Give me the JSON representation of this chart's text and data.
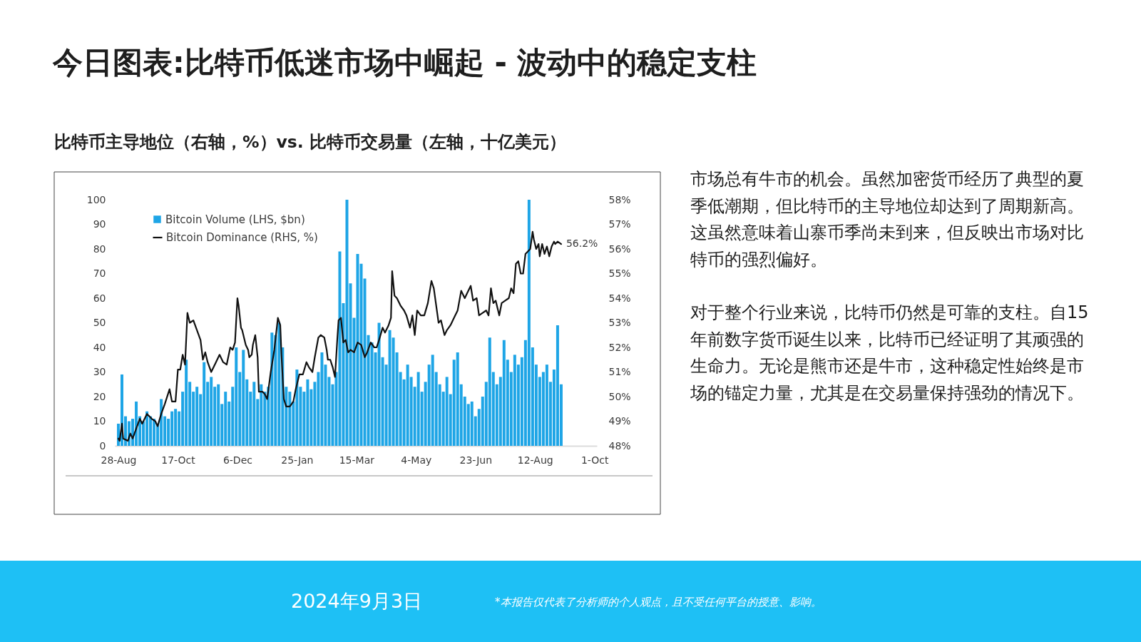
{
  "chart_data": {
    "type": "bar",
    "title": "今日图表:比特币低迷市场中崛起 - 波动中的稳定支柱",
    "subtitle": "比特币主导地位（右轴，%）vs. 比特币交易量（左轴，十亿美元）",
    "annotations": [
      "市场总有牛市的机会。虽然加密货币经历了典型的夏季低潮期，但比特币的主导地位却达到了周期新高。这虽然意味着山寨币季尚未到来，但反映出市场对比特币的强烈偏好。",
      "对于整个行业来说，比特币仍然是可靠的支柱。自15年前数字货币诞生以来，比特币已经证明了其顽强的生命力。无论是熊市还是牛市，这种稳定性始终是市场的锚定力量，尤其是在交易量保持强劲的情况下。",
      "2024年9月3日",
      "*本报告仅代表了分析师的个人观点，且不受任何平台的授意、影响。"
    ],
    "legend": "top left",
    "xlim": [
      "2023-08-25",
      "2024-10-03"
    ],
    "xticks": [
      {
        "value": "2023-08-28",
        "label": "28-Aug"
      },
      {
        "value": "2023-10-17",
        "label": "17-Oct"
      },
      {
        "value": "2023-12-06",
        "label": "6-Dec"
      },
      {
        "value": "2024-01-25",
        "label": "25-Jan"
      },
      {
        "value": "2024-03-15",
        "label": "15-Mar"
      },
      {
        "value": "2024-05-04",
        "label": "4-May"
      },
      {
        "value": "2024-06-23",
        "label": "23-Jun"
      },
      {
        "value": "2024-08-12",
        "label": "12-Aug"
      },
      {
        "value": "2024-10-01",
        "label": "1-Oct"
      }
    ],
    "ylim": [
      0,
      100
    ],
    "yticks": [
      0,
      10,
      20,
      30,
      40,
      50,
      60,
      70,
      80,
      90,
      100
    ],
    "y2lim": [
      48,
      58
    ],
    "y2ticks": [
      {
        "value": 48,
        "label": "48%"
      },
      {
        "value": 49,
        "label": "49%"
      },
      {
        "value": 50,
        "label": "50%"
      },
      {
        "value": 51,
        "label": "51%"
      },
      {
        "value": 52,
        "label": "52%"
      },
      {
        "value": 53,
        "label": "53%"
      },
      {
        "value": 54,
        "label": "54%"
      },
      {
        "value": 55,
        "label": "55%"
      },
      {
        "value": 56,
        "label": "56%"
      },
      {
        "value": 57,
        "label": "57%"
      },
      {
        "value": 58,
        "label": "58%"
      }
    ],
    "x": [
      "2023-08-28",
      "2023-08-31",
      "2023-09-03",
      "2023-09-06",
      "2023-09-09",
      "2023-09-12",
      "2023-09-15",
      "2023-09-18",
      "2023-09-21",
      "2023-09-24",
      "2023-09-27",
      "2023-09-30",
      "2023-10-03",
      "2023-10-06",
      "2023-10-09",
      "2023-10-12",
      "2023-10-15",
      "2023-10-18",
      "2023-10-21",
      "2023-10-24",
      "2023-10-27",
      "2023-10-30",
      "2023-11-02",
      "2023-11-05",
      "2023-11-08",
      "2023-11-11",
      "2023-11-14",
      "2023-11-17",
      "2023-11-20",
      "2023-11-23",
      "2023-11-26",
      "2023-11-29",
      "2023-12-02",
      "2023-12-05",
      "2023-12-08",
      "2023-12-11",
      "2023-12-14",
      "2023-12-17",
      "2023-12-20",
      "2023-12-23",
      "2023-12-26",
      "2023-12-29",
      "2024-01-01",
      "2024-01-04",
      "2024-01-07",
      "2024-01-10",
      "2024-01-13",
      "2024-01-16",
      "2024-01-19",
      "2024-01-22",
      "2024-01-25",
      "2024-01-28",
      "2024-01-31",
      "2024-02-03",
      "2024-02-06",
      "2024-02-09",
      "2024-02-12",
      "2024-02-15",
      "2024-02-18",
      "2024-02-21",
      "2024-02-24",
      "2024-02-27",
      "2024-03-01",
      "2024-03-04",
      "2024-03-07",
      "2024-03-10",
      "2024-03-13",
      "2024-03-16",
      "2024-03-19",
      "2024-03-22",
      "2024-03-25",
      "2024-03-28",
      "2024-03-31",
      "2024-04-03",
      "2024-04-06",
      "2024-04-09",
      "2024-04-12",
      "2024-04-15",
      "2024-04-18",
      "2024-04-21",
      "2024-04-24",
      "2024-04-27",
      "2024-04-30",
      "2024-05-03",
      "2024-05-06",
      "2024-05-09",
      "2024-05-12",
      "2024-05-15",
      "2024-05-18",
      "2024-05-21",
      "2024-05-24",
      "2024-05-27",
      "2024-05-30",
      "2024-06-02",
      "2024-06-05",
      "2024-06-08",
      "2024-06-11",
      "2024-06-14",
      "2024-06-17",
      "2024-06-20",
      "2024-06-23",
      "2024-06-26",
      "2024-06-29",
      "2024-07-02",
      "2024-07-05",
      "2024-07-08",
      "2024-07-11",
      "2024-07-14",
      "2024-07-17",
      "2024-07-20",
      "2024-07-23",
      "2024-07-26",
      "2024-07-29",
      "2024-08-01",
      "2024-08-04",
      "2024-08-07",
      "2024-08-10",
      "2024-08-13",
      "2024-08-16",
      "2024-08-19",
      "2024-08-22",
      "2024-08-25",
      "2024-08-28",
      "2024-08-31",
      "2024-09-03"
    ],
    "series": [
      {
        "name": "Bitcoin Volume (LHS, $bn)",
        "axis": "y",
        "color": "#1ea5e6",
        "values": [
          9,
          29,
          12,
          10,
          11,
          18,
          12,
          10,
          14,
          12,
          11,
          9,
          19,
          12,
          11,
          14,
          15,
          14,
          22,
          35,
          26,
          22,
          24,
          21,
          34,
          26,
          28,
          24,
          25,
          17,
          22,
          18,
          24,
          40,
          30,
          39,
          27,
          22,
          26,
          19,
          25,
          22,
          24,
          46,
          45,
          50,
          40,
          24,
          22,
          18,
          31,
          24,
          22,
          27,
          23,
          26,
          30,
          38,
          33,
          28,
          25,
          30,
          79,
          58,
          100,
          66,
          52,
          78,
          74,
          68,
          45,
          42,
          38,
          50,
          36,
          33,
          47,
          44,
          38,
          30,
          27,
          33,
          28,
          24,
          30,
          22,
          26,
          33,
          37,
          30,
          25,
          22,
          28,
          21,
          35,
          38,
          25,
          20,
          17,
          18,
          12,
          15,
          20,
          26,
          44,
          30,
          25,
          28,
          43,
          35,
          30,
          37,
          33,
          36,
          43,
          100,
          40,
          33,
          28,
          30,
          33,
          26,
          31,
          49,
          25
        ]
      },
      {
        "name": "Bitcoin Dominance (RHS, %)",
        "type": "line",
        "axis": "y2",
        "color": "#111111",
        "x": [
          "2023-08-28",
          "2023-08-29",
          "2023-08-31",
          "2023-09-01",
          "2023-09-05",
          "2023-09-07",
          "2023-09-09",
          "2023-09-12",
          "2023-09-15",
          "2023-09-17",
          "2023-09-21",
          "2023-09-25",
          "2023-09-28",
          "2023-09-30",
          "2023-10-03",
          "2023-10-06",
          "2023-10-10",
          "2023-10-12",
          "2023-10-15",
          "2023-10-17",
          "2023-10-19",
          "2023-10-21",
          "2023-10-23",
          "2023-10-25",
          "2023-10-27",
          "2023-10-30",
          "2023-11-02",
          "2023-11-05",
          "2023-11-07",
          "2023-11-09",
          "2023-11-11",
          "2023-11-14",
          "2023-11-18",
          "2023-11-21",
          "2023-11-24",
          "2023-11-27",
          "2023-11-30",
          "2023-12-02",
          "2023-12-04",
          "2023-12-06",
          "2023-12-07",
          "2023-12-09",
          "2023-12-10",
          "2023-12-13",
          "2023-12-15",
          "2023-12-16",
          "2023-12-18",
          "2023-12-19",
          "2023-12-21",
          "2023-12-23",
          "2023-12-24",
          "2023-12-27",
          "2023-12-29",
          "2023-12-31",
          "2024-01-03",
          "2024-01-06",
          "2024-01-09",
          "2024-01-11",
          "2024-01-12",
          "2024-01-14",
          "2024-01-16",
          "2024-01-19",
          "2024-01-22",
          "2024-01-24",
          "2024-01-27",
          "2024-01-30",
          "2024-02-02",
          "2024-02-04",
          "2024-02-07",
          "2024-02-09",
          "2024-02-12",
          "2024-02-14",
          "2024-02-17",
          "2024-02-19",
          "2024-02-20",
          "2024-02-22",
          "2024-02-24",
          "2024-02-26",
          "2024-02-28",
          "2024-02-29",
          "2024-03-02",
          "2024-03-04",
          "2024-03-06",
          "2024-03-08",
          "2024-03-10",
          "2024-03-13",
          "2024-03-16",
          "2024-03-19",
          "2024-03-22",
          "2024-03-24",
          "2024-03-27",
          "2024-03-30",
          "2024-04-01",
          "2024-04-03",
          "2024-04-06",
          "2024-04-08",
          "2024-04-11",
          "2024-04-13",
          "2024-04-14",
          "2024-04-16",
          "2024-04-18",
          "2024-04-21",
          "2024-04-24",
          "2024-04-26",
          "2024-04-29",
          "2024-05-01",
          "2024-05-03",
          "2024-05-05",
          "2024-05-08",
          "2024-05-11",
          "2024-05-14",
          "2024-05-17",
          "2024-05-19",
          "2024-05-21",
          "2024-05-23",
          "2024-05-25",
          "2024-05-28",
          "2024-05-30",
          "2024-06-02",
          "2024-06-05",
          "2024-06-08",
          "2024-06-11",
          "2024-06-14",
          "2024-06-16",
          "2024-06-19",
          "2024-06-21",
          "2024-06-24",
          "2024-06-26",
          "2024-06-29",
          "2024-07-02",
          "2024-07-04",
          "2024-07-06",
          "2024-07-08",
          "2024-07-10",
          "2024-07-13",
          "2024-07-15",
          "2024-07-18",
          "2024-07-21",
          "2024-07-23",
          "2024-07-25",
          "2024-07-27",
          "2024-07-29",
          "2024-07-31",
          "2024-08-02",
          "2024-08-04",
          "2024-08-06",
          "2024-08-08",
          "2024-08-10",
          "2024-08-11",
          "2024-08-13",
          "2024-08-15",
          "2024-08-16",
          "2024-08-18",
          "2024-08-20",
          "2024-08-22",
          "2024-08-24",
          "2024-08-26",
          "2024-08-28",
          "2024-08-29",
          "2024-08-31",
          "2024-09-03"
        ],
        "values": [
          48.3,
          48.2,
          48.9,
          48.3,
          48.2,
          48.5,
          48.3,
          48.7,
          49.1,
          48.9,
          49.3,
          49.1,
          49.0,
          48.8,
          49.3,
          49.7,
          50.3,
          49.8,
          49.8,
          51.1,
          51.1,
          51.7,
          51.3,
          53.4,
          53.0,
          53.1,
          52.7,
          52.3,
          51.5,
          51.8,
          51.4,
          51.0,
          51.4,
          51.7,
          51.4,
          51.3,
          52.0,
          51.9,
          52.2,
          54.0,
          53.7,
          52.8,
          52.7,
          52.1,
          51.9,
          51.6,
          51.7,
          52.1,
          52.5,
          51.6,
          50.2,
          50.2,
          50.1,
          49.9,
          51.0,
          51.9,
          53.2,
          52.9,
          51.7,
          49.9,
          49.6,
          49.6,
          49.8,
          50.3,
          50.9,
          50.9,
          51.4,
          51.2,
          51.0,
          51.6,
          52.4,
          52.5,
          52.4,
          51.9,
          51.5,
          51.5,
          51.2,
          50.8,
          52.4,
          53.1,
          53.2,
          52.2,
          52.3,
          51.8,
          51.9,
          51.8,
          52.2,
          52.1,
          51.6,
          51.8,
          52.2,
          52.0,
          52.0,
          52.3,
          52.8,
          52.6,
          52.9,
          53.2,
          55.1,
          54.1,
          54.0,
          53.7,
          53.5,
          53.3,
          52.8,
          53.3,
          52.5,
          53.5,
          53.3,
          53.3,
          53.8,
          54.7,
          54.4,
          53.7,
          53.0,
          53.1,
          52.5,
          52.7,
          52.9,
          53.2,
          53.5,
          54.3,
          54.0,
          54.2,
          54.5,
          53.9,
          54.0,
          53.3,
          53.4,
          53.5,
          53.3,
          54.4,
          53.8,
          53.9,
          53.3,
          53.8,
          53.9,
          54.0,
          54.4,
          54.2,
          55.4,
          55.5,
          55.0,
          55.0,
          55.8,
          55.9,
          56.0,
          56.7,
          56.4,
          56.0,
          56.2,
          55.7,
          56.2,
          55.8,
          56.1,
          55.7,
          56.1,
          56.3,
          56.2,
          56.3,
          56.2
        ],
        "value_labels": [
          null,
          null,
          null,
          null,
          null,
          null,
          null,
          null,
          null,
          null,
          null,
          null,
          null,
          null,
          null,
          null,
          null,
          null,
          null,
          null,
          null,
          null,
          null,
          null,
          null,
          null,
          null,
          null,
          null,
          null,
          null,
          null,
          null,
          null,
          null,
          null,
          null,
          null,
          null,
          null,
          null,
          null,
          null,
          null,
          null,
          null,
          null,
          null,
          null,
          null,
          null,
          null,
          null,
          null,
          null,
          null,
          null,
          null,
          null,
          null,
          null,
          null,
          null,
          null,
          null,
          null,
          null,
          null,
          null,
          null,
          null,
          null,
          null,
          null,
          null,
          null,
          null,
          null,
          null,
          null,
          null,
          null,
          null,
          null,
          null,
          null,
          null,
          null,
          null,
          null,
          null,
          null,
          null,
          null,
          null,
          null,
          null,
          null,
          null,
          null,
          null,
          null,
          null,
          null,
          null,
          null,
          null,
          null,
          null,
          null,
          null,
          null,
          null,
          null,
          null,
          null,
          null,
          null,
          null,
          null,
          null,
          null,
          null,
          null,
          null,
          null,
          null,
          null,
          null,
          null,
          null,
          null,
          null,
          null,
          null,
          null,
          null,
          null,
          null,
          null,
          null,
          null,
          null,
          null,
          null,
          null,
          null,
          null,
          null,
          null,
          null,
          null,
          null,
          null,
          null,
          null,
          null,
          null,
          null,
          null,
          "56.2%"
        ]
      }
    ]
  }
}
